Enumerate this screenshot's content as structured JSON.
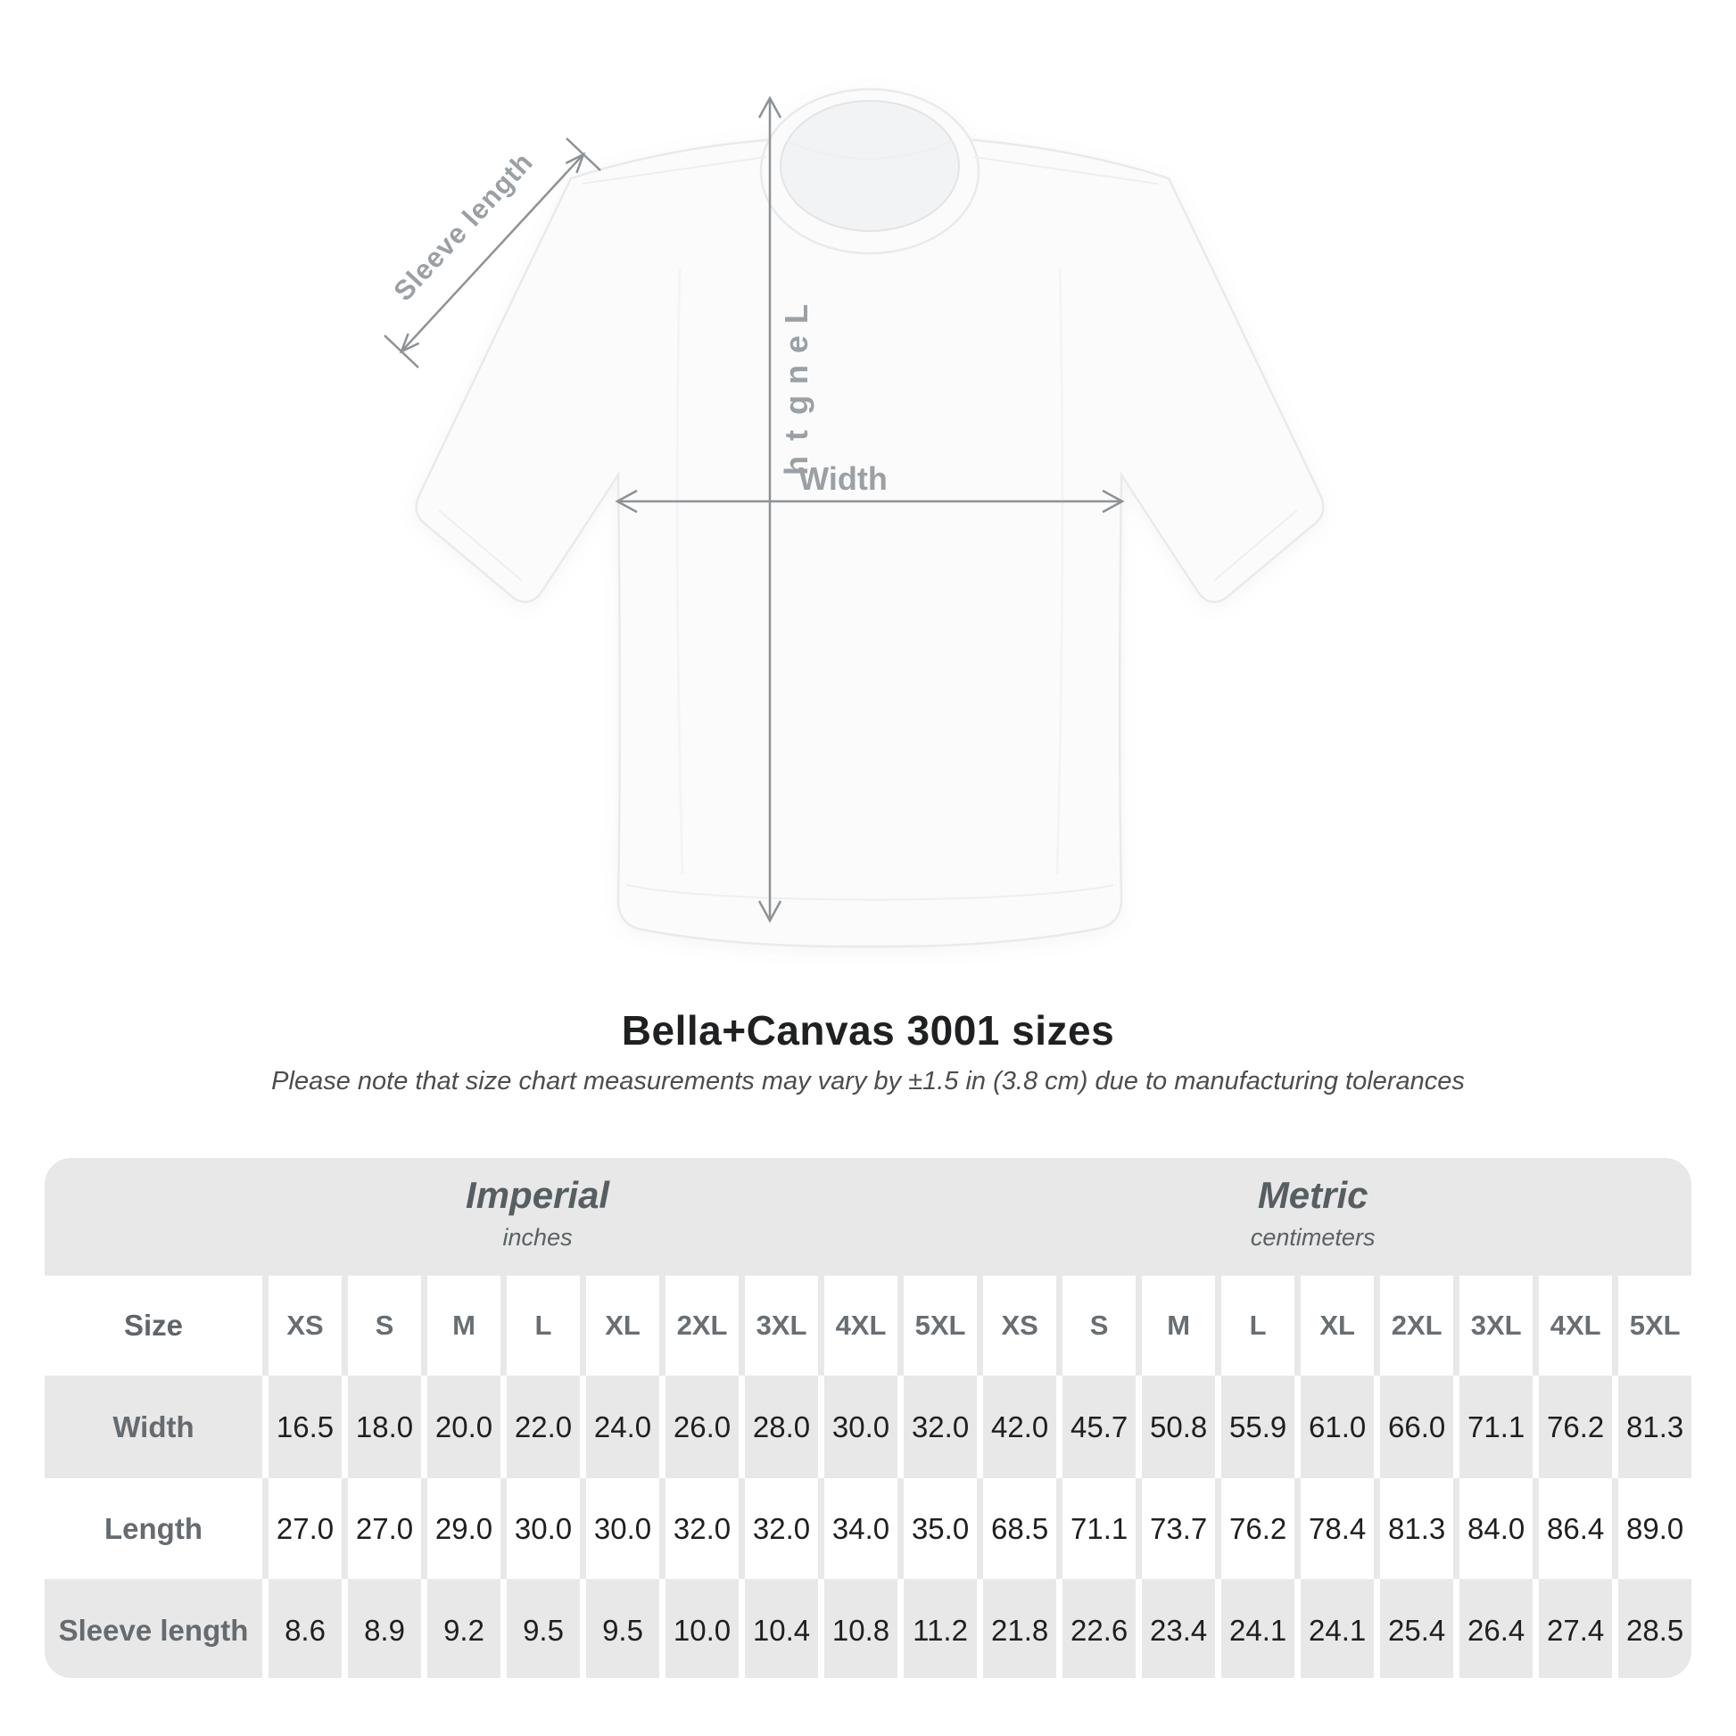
{
  "diagram": {
    "type": "t-shirt measurement diagram",
    "garment": "white t-shirt, front view",
    "labels": {
      "sleeve": "Sleeve length",
      "length": "Length",
      "width": "Width"
    },
    "colors": {
      "arrow": "#8d9295",
      "label": "#9aa0a3",
      "shirt_outline": "#e9eaec",
      "shirt_fill": "#fbfbfc"
    }
  },
  "title": "Bella+Canvas 3001 sizes",
  "subtitle": "Please note that size chart measurements may vary by ±1.5 in (3.8 cm) due to manufacturing tolerances",
  "table": {
    "corner_label": "Size",
    "group_headers": [
      {
        "label": "Imperial",
        "sub": "inches"
      },
      {
        "label": "Metric",
        "sub": "centimeters"
      }
    ],
    "sizes": [
      "XS",
      "S",
      "M",
      "L",
      "XL",
      "2XL",
      "3XL",
      "4XL",
      "5XL"
    ],
    "rows": [
      {
        "label": "Width",
        "imperial": [
          "16.5",
          "18.0",
          "20.0",
          "22.0",
          "24.0",
          "26.0",
          "28.0",
          "30.0",
          "32.0"
        ],
        "metric": [
          "42.0",
          "45.7",
          "50.8",
          "55.9",
          "61.0",
          "66.0",
          "71.1",
          "76.2",
          "81.3"
        ]
      },
      {
        "label": "Length",
        "imperial": [
          "27.0",
          "27.0",
          "29.0",
          "30.0",
          "30.0",
          "32.0",
          "32.0",
          "34.0",
          "35.0"
        ],
        "metric": [
          "68.5",
          "71.1",
          "73.7",
          "76.2",
          "78.4",
          "81.3",
          "84.0",
          "86.4",
          "89.0"
        ]
      },
      {
        "label": "Sleeve length",
        "imperial": [
          "8.6",
          "8.9",
          "9.2",
          "9.5",
          "9.5",
          "10.0",
          "10.4",
          "10.8",
          "11.2"
        ],
        "metric": [
          "21.8",
          "22.6",
          "23.4",
          "24.1",
          "24.1",
          "25.4",
          "26.4",
          "27.4",
          "28.5"
        ]
      }
    ],
    "row_colors": {
      "gray": "#e8e8e8",
      "white": "#ffffff"
    }
  },
  "chart_data": {
    "type": "table",
    "title": "Bella+Canvas 3001 sizes",
    "note": "Measurements may vary by ±1.5 in (3.8 cm) due to manufacturing tolerances",
    "unit_groups": [
      {
        "name": "Imperial",
        "unit": "inches"
      },
      {
        "name": "Metric",
        "unit": "centimeters"
      }
    ],
    "sizes": [
      "XS",
      "S",
      "M",
      "L",
      "XL",
      "2XL",
      "3XL",
      "4XL",
      "5XL"
    ],
    "measurements": [
      {
        "label": "Width",
        "imperial_in": [
          16.5,
          18.0,
          20.0,
          22.0,
          24.0,
          26.0,
          28.0,
          30.0,
          32.0
        ],
        "metric_cm": [
          42.0,
          45.7,
          50.8,
          55.9,
          61.0,
          66.0,
          71.1,
          76.2,
          81.3
        ]
      },
      {
        "label": "Length",
        "imperial_in": [
          27.0,
          27.0,
          29.0,
          30.0,
          30.0,
          32.0,
          32.0,
          34.0,
          35.0
        ],
        "metric_cm": [
          68.5,
          71.1,
          73.7,
          76.2,
          78.4,
          81.3,
          84.0,
          86.4,
          89.0
        ]
      },
      {
        "label": "Sleeve length",
        "imperial_in": [
          8.6,
          8.9,
          9.2,
          9.5,
          9.5,
          10.0,
          10.4,
          10.8,
          11.2
        ],
        "metric_cm": [
          21.8,
          22.6,
          23.4,
          24.1,
          24.1,
          25.4,
          26.4,
          27.4,
          28.5
        ]
      }
    ]
  }
}
